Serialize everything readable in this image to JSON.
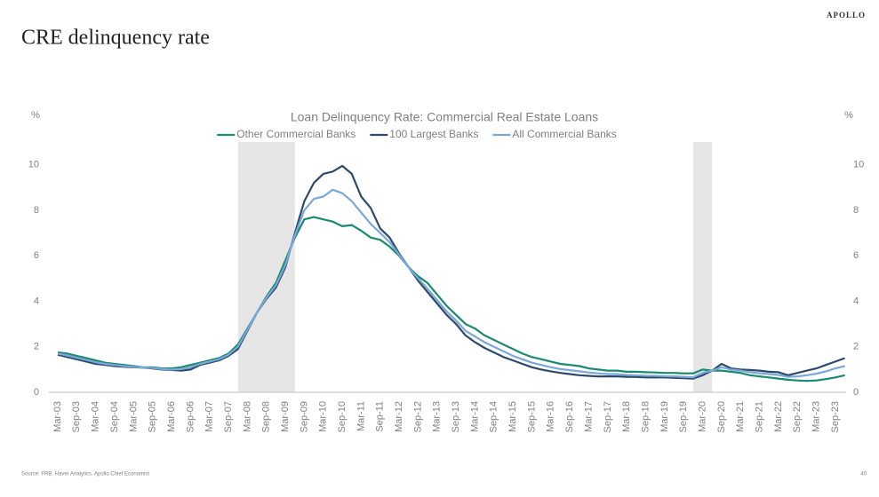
{
  "brand": "APOLLO",
  "slide_title": "CRE delinquency rate",
  "source": "Source: FRB, Haver Analytics, Apollo Chief Economist",
  "page_number": "40",
  "chart_data": {
    "type": "line",
    "title": "Loan Delinquency Rate: Commercial Real Estate Loans",
    "y_label": "%",
    "y2_label": "%",
    "legend": "top",
    "shaded_ranges": [
      [
        19,
        25
      ],
      [
        67,
        69
      ]
    ],
    "categories": [
      "Mar-03",
      null,
      "Sep-03",
      null,
      "Mar-04",
      null,
      "Sep-04",
      null,
      "Mar-05",
      null,
      "Sep-05",
      null,
      "Mar-06",
      null,
      "Sep-06",
      null,
      "Mar-07",
      null,
      "Sep-07",
      null,
      "Mar-08",
      null,
      "Sep-08",
      null,
      "Mar-09",
      null,
      "Sep-09",
      null,
      "Mar-10",
      null,
      "Sep-10",
      null,
      "Mar-11",
      null,
      "Sep-11",
      null,
      "Mar-12",
      null,
      "Sep-12",
      null,
      "Mar-13",
      null,
      "Sep-13",
      null,
      "Mar-14",
      null,
      "Sep-14",
      null,
      "Mar-15",
      null,
      "Sep-15",
      null,
      "Mar-16",
      null,
      "Sep-16",
      null,
      "Mar-17",
      null,
      "Sep-17",
      null,
      "Mar-18",
      null,
      "Sep-18",
      null,
      "Mar-19",
      null,
      "Sep-19",
      null,
      "Mar-20",
      null,
      "Sep-20",
      null,
      "Mar-21",
      null,
      "Sep-21",
      null,
      "Mar-22",
      null,
      "Sep-22",
      null,
      "Mar-23",
      null,
      "Sep-23",
      null
    ],
    "series": [
      {
        "name": "Other Commercial Banks",
        "color": "#1a8a6e",
        "values": [
          1.75,
          1.7,
          1.6,
          1.5,
          1.4,
          1.3,
          1.25,
          1.2,
          1.15,
          1.1,
          1.1,
          1.05,
          1.05,
          1.1,
          1.2,
          1.3,
          1.4,
          1.5,
          1.7,
          2.1,
          2.8,
          3.5,
          4.2,
          4.8,
          5.8,
          6.8,
          7.6,
          7.7,
          7.6,
          7.5,
          7.3,
          7.35,
          7.1,
          6.8,
          6.7,
          6.4,
          6.0,
          5.5,
          5.1,
          4.8,
          4.3,
          3.8,
          3.4,
          3.0,
          2.8,
          2.5,
          2.3,
          2.1,
          1.9,
          1.7,
          1.55,
          1.45,
          1.35,
          1.25,
          1.2,
          1.15,
          1.05,
          1.0,
          0.95,
          0.95,
          0.9,
          0.9,
          0.88,
          0.87,
          0.85,
          0.85,
          0.83,
          0.83,
          1.0,
          0.95,
          0.95,
          0.9,
          0.85,
          0.75,
          0.7,
          0.65,
          0.6,
          0.55,
          0.52,
          0.5,
          0.52,
          0.58,
          0.65,
          0.75
        ]
      },
      {
        "name": "100 Largest Banks",
        "color": "#2e4a6b",
        "values": [
          1.65,
          1.55,
          1.45,
          1.35,
          1.25,
          1.2,
          1.15,
          1.12,
          1.1,
          1.08,
          1.05,
          1.0,
          0.98,
          0.95,
          1.0,
          1.2,
          1.3,
          1.4,
          1.6,
          1.9,
          2.7,
          3.5,
          4.1,
          4.6,
          5.5,
          7.0,
          8.4,
          9.2,
          9.6,
          9.7,
          9.95,
          9.6,
          8.6,
          8.1,
          7.2,
          6.8,
          6.1,
          5.5,
          4.9,
          4.4,
          3.9,
          3.4,
          3.0,
          2.5,
          2.2,
          1.95,
          1.75,
          1.55,
          1.4,
          1.25,
          1.1,
          1.0,
          0.92,
          0.85,
          0.8,
          0.75,
          0.72,
          0.7,
          0.7,
          0.7,
          0.68,
          0.67,
          0.65,
          0.65,
          0.65,
          0.63,
          0.62,
          0.6,
          0.75,
          0.95,
          1.25,
          1.05,
          1.0,
          0.98,
          0.95,
          0.9,
          0.88,
          0.75,
          0.85,
          0.95,
          1.05,
          1.2,
          1.35,
          1.5
        ]
      },
      {
        "name": "All Commercial Banks",
        "color": "#7ba7d9",
        "values": [
          1.7,
          1.62,
          1.52,
          1.42,
          1.32,
          1.25,
          1.2,
          1.15,
          1.12,
          1.09,
          1.07,
          1.02,
          1.0,
          1.02,
          1.1,
          1.25,
          1.35,
          1.45,
          1.65,
          2.0,
          2.75,
          3.5,
          4.15,
          4.7,
          5.6,
          6.9,
          8.0,
          8.5,
          8.6,
          8.9,
          8.75,
          8.4,
          7.9,
          7.4,
          7.0,
          6.6,
          6.05,
          5.5,
          5.0,
          4.55,
          4.05,
          3.55,
          3.15,
          2.7,
          2.45,
          2.2,
          2.0,
          1.8,
          1.6,
          1.45,
          1.3,
          1.2,
          1.1,
          1.02,
          0.97,
          0.92,
          0.87,
          0.83,
          0.8,
          0.8,
          0.76,
          0.75,
          0.73,
          0.72,
          0.71,
          0.7,
          0.68,
          0.66,
          0.85,
          0.95,
          1.1,
          1.0,
          0.95,
          0.88,
          0.84,
          0.8,
          0.76,
          0.68,
          0.7,
          0.75,
          0.82,
          0.92,
          1.05,
          1.15
        ]
      }
    ],
    "ylim": [
      0,
      11
    ],
    "yticks": [
      0,
      2,
      4,
      6,
      8,
      10
    ],
    "y2lim": [
      0,
      11
    ],
    "y2ticks": [
      0,
      2,
      4,
      6,
      8,
      10
    ]
  }
}
